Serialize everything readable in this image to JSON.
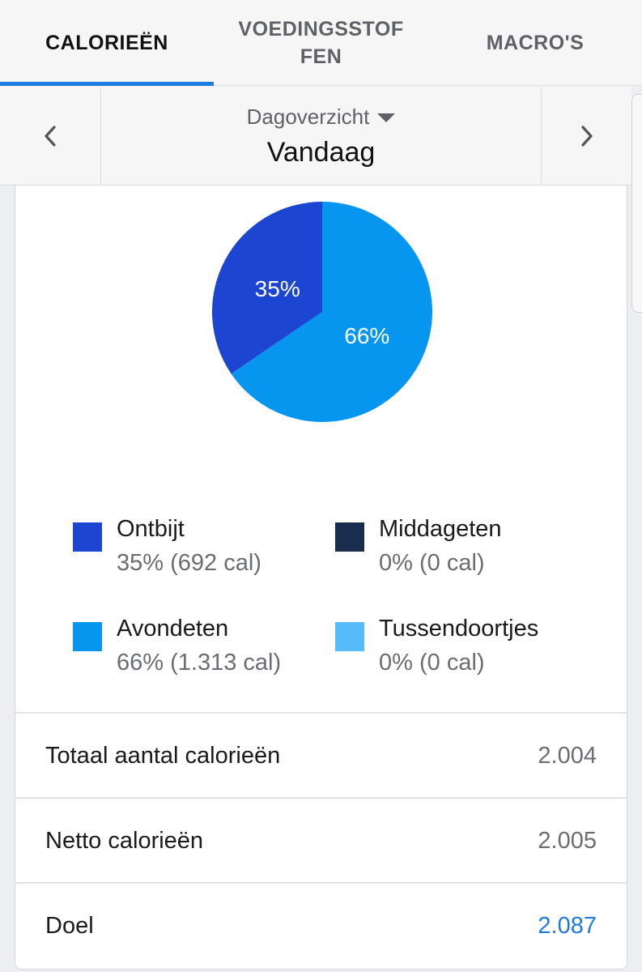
{
  "tabs": [
    {
      "label": "CALORIEËN",
      "active": true
    },
    {
      "label": "VOEDINGSSTOFFEN",
      "active": false
    },
    {
      "label": "MACRO'S",
      "active": false
    }
  ],
  "datenav": {
    "period": "Dagoverzicht",
    "date": "Vandaag"
  },
  "chart_data": {
    "type": "pie",
    "slices": [
      {
        "name": "Ontbijt",
        "percent": 35,
        "value": 692,
        "color": "#1c45d1"
      },
      {
        "name": "Middageten",
        "percent": 0,
        "value": 0,
        "color": "#1b2d4f"
      },
      {
        "name": "Avondeten",
        "percent": 66,
        "value": 1313,
        "color": "#0696ef"
      },
      {
        "name": "Tussendoortjes",
        "percent": 0,
        "value": 0,
        "color": "#55bbf9"
      }
    ],
    "data_labels": [
      "35%",
      "66%"
    ]
  },
  "legend": [
    {
      "name": "Ontbijt",
      "detail": "35% (692 cal)",
      "color": "#1c45d1"
    },
    {
      "name": "Middageten",
      "detail": "0% (0 cal)",
      "color": "#1b2d4f"
    },
    {
      "name": "Avondeten",
      "detail": "66% (1.313 cal)",
      "color": "#0696ef"
    },
    {
      "name": "Tussendoortjes",
      "detail": "0% (0 cal)",
      "color": "#55bbf9"
    }
  ],
  "summary": {
    "total_label": "Totaal aantal calorieën",
    "total_value": "2.004",
    "net_label": "Netto calorieën",
    "net_value": "2.005",
    "goal_label": "Doel",
    "goal_value": "2.087"
  },
  "colors": {
    "accent": "#1e7be0"
  }
}
